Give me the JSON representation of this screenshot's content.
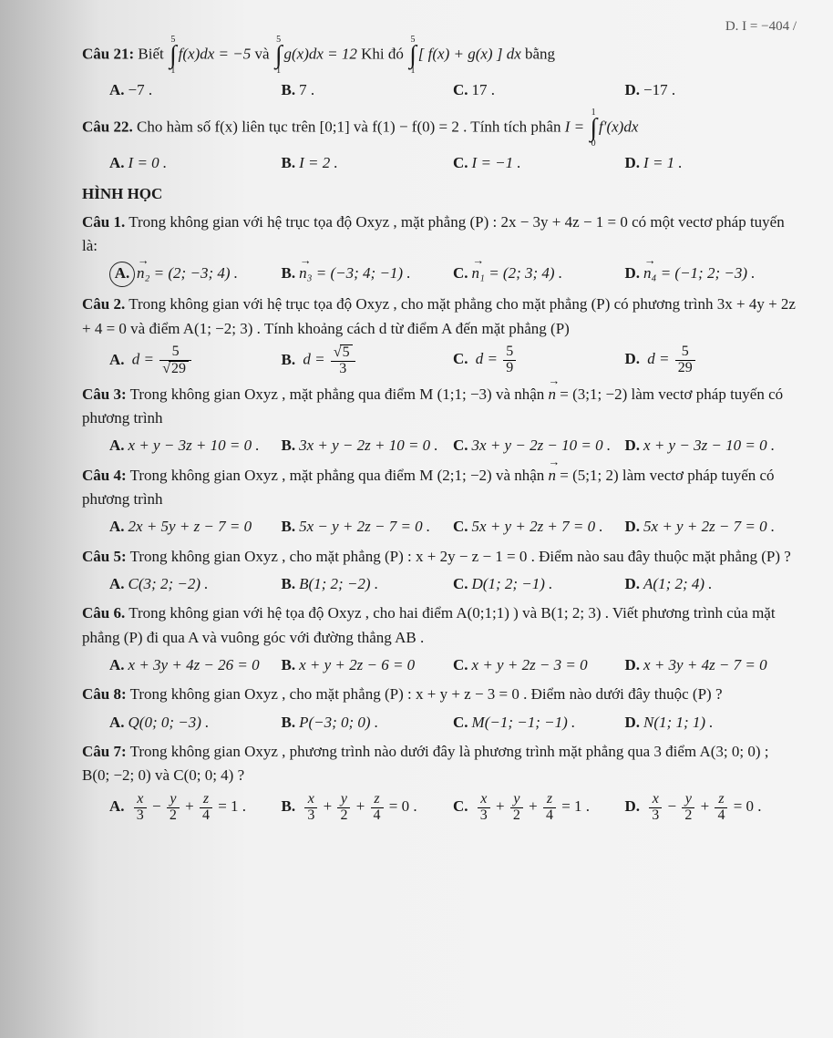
{
  "topRight": "D.  I = −404 /",
  "q21": {
    "label": "Câu 21:",
    "pre": "Biết",
    "int1": {
      "lo": "1",
      "hi": "5",
      "body": "f(x)dx = −5"
    },
    "mid1": "và",
    "int2": {
      "lo": "1",
      "hi": "5",
      "body": "g(x)dx = 12"
    },
    "mid2": "Khi đó",
    "int3": {
      "lo": "1",
      "hi": "5",
      "body": "[ f(x) + g(x) ] dx"
    },
    "tail": "bằng",
    "opts": [
      {
        "l": "A.",
        "t": "−7 ."
      },
      {
        "l": "B.",
        "t": "7 ."
      },
      {
        "l": "C.",
        "t": "17 ."
      },
      {
        "l": "D.",
        "t": "−17 ."
      }
    ]
  },
  "q22": {
    "label": "Câu 22.",
    "text1": "Cho hàm số  f(x)  liên tục trên  [0;1]  và  f(1) − f(0) = 2 . Tính tích phân",
    "Ieq": "I =",
    "int": {
      "lo": "0",
      "hi": "1",
      "body": "f′(x)dx"
    },
    "opts": [
      {
        "l": "A.",
        "t": "I = 0 ."
      },
      {
        "l": "B.",
        "t": "I = 2 ."
      },
      {
        "l": "C.",
        "t": "I = −1 ."
      },
      {
        "l": "D.",
        "t": "I = 1 ."
      }
    ]
  },
  "sectionHead": "HÌNH HỌC",
  "h1": {
    "label": "Câu 1.",
    "text": "Trong không gian với hệ trục tọa độ  Oxyz , mặt phẳng  (P) : 2x − 3y + 4z − 1 = 0  có một vectơ pháp tuyến là:",
    "opts": [
      {
        "l": "A.",
        "vec": "n₂",
        "t": " = (2; −3; 4) .",
        "circled": true
      },
      {
        "l": "B.",
        "vec": "n₃",
        "t": " = (−3; 4; −1) ."
      },
      {
        "l": "C.",
        "vec": "n₁",
        "t": " = (2; 3; 4) ."
      },
      {
        "l": "D.",
        "vec": "n₄",
        "t": " = (−1; 2; −3) ."
      }
    ]
  },
  "h2": {
    "label": "Câu 2.",
    "text": "Trong không gian với hệ trục tọa độ  Oxyz , cho mặt phẳng cho mặt phẳng  (P)  có phương trình  3x + 4y + 2z + 4 = 0  và điểm  A(1; −2; 3) . Tính khoảng cách  d  từ điểm  A  đến mặt phẳng  (P)",
    "opts": {
      "A": {
        "l": "A.",
        "pre": "d =",
        "num": "5",
        "denRoot": "29"
      },
      "B": {
        "l": "B.",
        "pre": "d =",
        "numRoot": "5",
        "den": "3"
      },
      "C": {
        "l": "C.",
        "pre": "d =",
        "num": "5",
        "den": "9"
      },
      "D": {
        "l": "D.",
        "pre": "d =",
        "num": "5",
        "den": "29"
      }
    }
  },
  "h3": {
    "label": "Câu 3:",
    "text": "Trong không gian  Oxyz , mặt phẳng qua điểm  M (1;1; −3)  và nhận  ",
    "vec": "n",
    "text2": " = (3;1; −2)  làm vectơ pháp tuyến có phương trình",
    "opts": [
      {
        "l": "A.",
        "t": "x + y − 3z + 10 = 0 ."
      },
      {
        "l": "B.",
        "t": "3x + y − 2z + 10 = 0 ."
      },
      {
        "l": "C.",
        "t": "3x + y − 2z − 10 = 0 ."
      },
      {
        "l": "D.",
        "t": "x + y − 3z − 10 = 0 ."
      }
    ]
  },
  "h4": {
    "label": "Câu 4:",
    "text": "Trong không gian  Oxyz , mặt phẳng qua điểm  M (2;1; −2)  và nhận  ",
    "vec": "n",
    "text2": " = (5;1; 2)  làm vectơ pháp tuyến có phương trình",
    "opts": [
      {
        "l": "A.",
        "t": "2x + 5y + z − 7 = 0"
      },
      {
        "l": "B.",
        "t": "5x − y + 2z − 7 = 0 ."
      },
      {
        "l": "C.",
        "t": "5x + y + 2z + 7 = 0 ."
      },
      {
        "l": "D.",
        "t": "5x + y + 2z − 7 = 0 ."
      }
    ]
  },
  "h5": {
    "label": "Câu 5:",
    "text": "Trong không gian  Oxyz , cho mặt phẳng  (P) : x + 2y − z − 1 = 0 . Điểm nào sau đây thuộc mặt phẳng  (P) ?",
    "opts": [
      {
        "l": "A.",
        "t": "C(3; 2; −2) ."
      },
      {
        "l": "B.",
        "t": "B(1; 2; −2) ."
      },
      {
        "l": "C.",
        "t": "D(1; 2; −1) ."
      },
      {
        "l": "D.",
        "t": "A(1; 2; 4) ."
      }
    ]
  },
  "h6": {
    "label": "Câu 6.",
    "text": "Trong không gian với hệ tọa độ  Oxyz , cho hai điểm  A(0;1;1) )  và  B(1; 2; 3) . Viết phương trình của mặt phẳng  (P) đi qua  A  và vuông góc với đường thẳng  AB .",
    "opts": [
      {
        "l": "A.",
        "t": "x + 3y + 4z − 26 = 0"
      },
      {
        "l": "B.",
        "t": "x + y + 2z − 6 = 0"
      },
      {
        "l": "C.",
        "t": "x + y + 2z − 3 = 0"
      },
      {
        "l": "D.",
        "t": "x + 3y + 4z − 7 = 0"
      }
    ]
  },
  "h8": {
    "label": "Câu 8:",
    "text": "Trong không gian  Oxyz , cho mặt phẳng  (P) : x + y + z − 3 = 0 . Điểm nào dưới đây thuộc (P) ?",
    "opts": [
      {
        "l": "A.",
        "t": "Q(0; 0; −3) ."
      },
      {
        "l": "B.",
        "t": "P(−3; 0; 0) ."
      },
      {
        "l": "C.",
        "t": "M(−1; −1; −1) ."
      },
      {
        "l": "D.",
        "t": "N(1; 1; 1) ."
      }
    ]
  },
  "h7": {
    "label": "Câu 7:",
    "text": "Trong không gian  Oxyz , phương trình nào dưới đây là phương trình mặt phẳng qua 3 điểm  A(3; 0; 0) ; B(0; −2; 0)  và  C(0; 0; 4) ?",
    "opts": {
      "A": {
        "l": "A.",
        "terms": [
          {
            "n": "x",
            "d": "3",
            "s": ""
          },
          {
            "n": "y",
            "d": "2",
            "s": "−"
          },
          {
            "n": "z",
            "d": "4",
            "s": "+"
          }
        ],
        "eq": "= 1 ."
      },
      "B": {
        "l": "B.",
        "terms": [
          {
            "n": "x",
            "d": "3",
            "s": ""
          },
          {
            "n": "y",
            "d": "2",
            "s": "+"
          },
          {
            "n": "z",
            "d": "4",
            "s": "+"
          }
        ],
        "eq": "= 0 ."
      },
      "C": {
        "l": "C.",
        "terms": [
          {
            "n": "x",
            "d": "3",
            "s": ""
          },
          {
            "n": "y",
            "d": "2",
            "s": "+"
          },
          {
            "n": "z",
            "d": "4",
            "s": "+"
          }
        ],
        "eq": "= 1 ."
      },
      "D": {
        "l": "D.",
        "terms": [
          {
            "n": "x",
            "d": "3",
            "s": ""
          },
          {
            "n": "y",
            "d": "2",
            "s": "−"
          },
          {
            "n": "z",
            "d": "4",
            "s": "+"
          }
        ],
        "eq": "= 0 ."
      }
    }
  }
}
